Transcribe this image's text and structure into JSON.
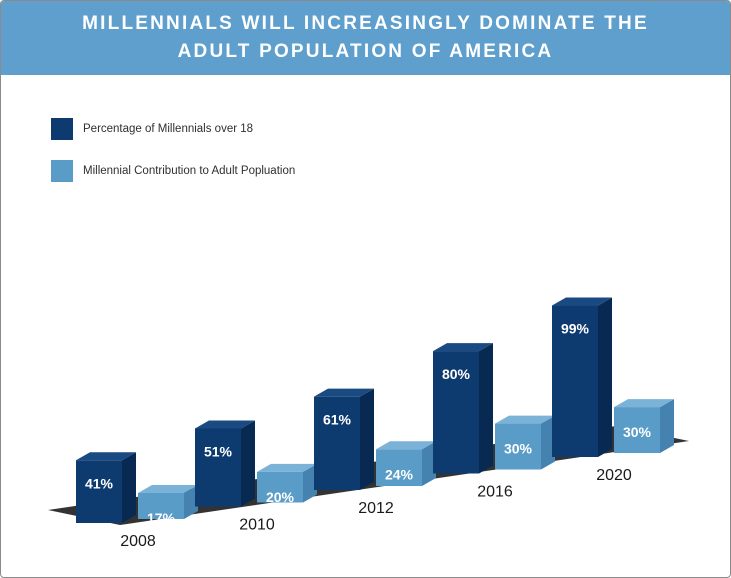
{
  "header": {
    "title_line1": "MILLENNIALS WILL INCREASINGLY DOMINATE THE",
    "title_line2": "ADULT POPULATION OF AMERICA"
  },
  "colors": {
    "header_bg": "#5e9fce",
    "series1_front": "#0d3b70",
    "series1_side": "#082a52",
    "series1_top": "#1a4a82",
    "series2_front": "#5a9cc8",
    "series2_side": "#4582b0",
    "series2_top": "#7ab2d8",
    "floor": "#333333"
  },
  "chart_data": {
    "type": "bar",
    "title": "MILLENNIALS WILL INCREASINGLY DOMINATE THE ADULT POPULATION OF AMERICA",
    "xlabel": "",
    "ylabel": "",
    "categories": [
      "2008",
      "2010",
      "2012",
      "2016",
      "2020"
    ],
    "series": [
      {
        "name": "Percentage of Millennials over 18",
        "values": [
          41,
          51,
          61,
          80,
          99
        ],
        "labels": [
          "41%",
          "51%",
          "61%",
          "80%",
          "99%"
        ]
      },
      {
        "name": "Millennial Contribution to Adult Popluation",
        "values": [
          17,
          20,
          24,
          30,
          30
        ],
        "labels": [
          "17%",
          "20%",
          "24%",
          "30%",
          "30%"
        ]
      }
    ],
    "legend_position": "top-left",
    "grid": false
  }
}
